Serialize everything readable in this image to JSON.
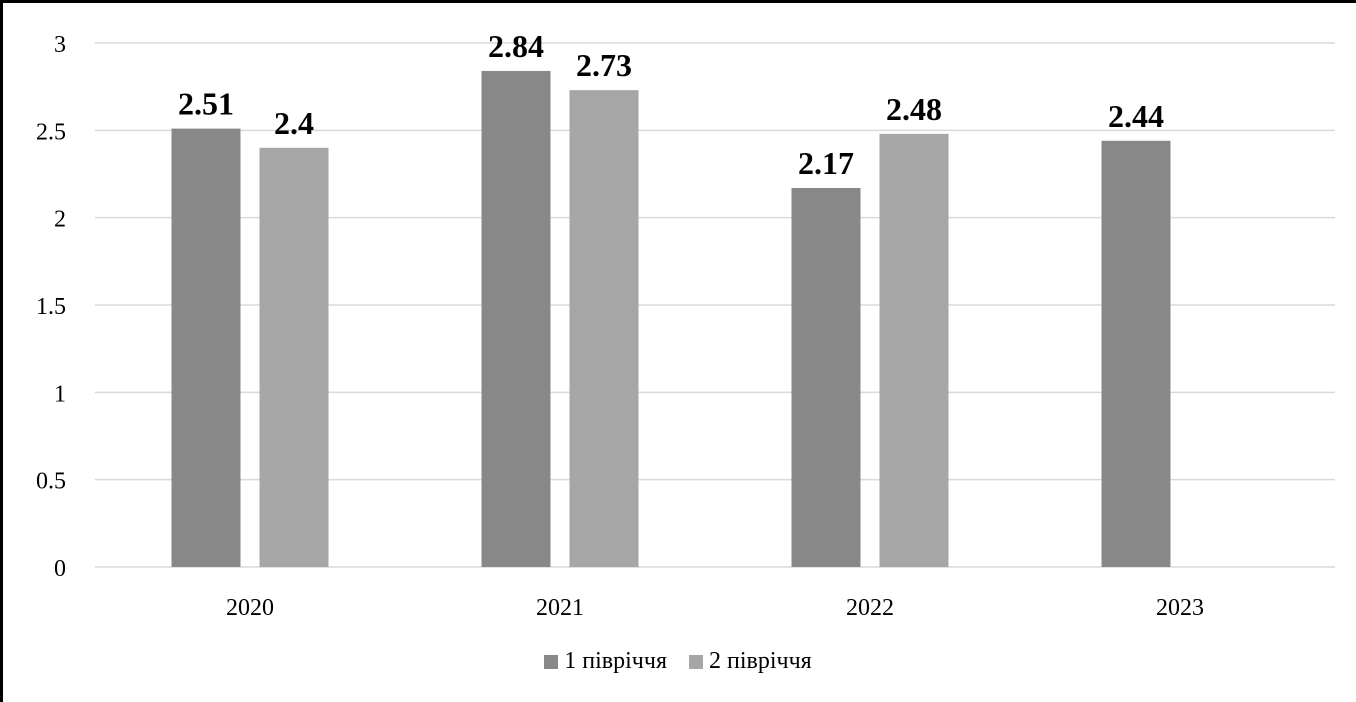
{
  "chart_data": {
    "type": "bar",
    "categories": [
      "2020",
      "2021",
      "2022",
      "2023"
    ],
    "series": [
      {
        "name": "1 півріччя",
        "values": [
          2.51,
          2.84,
          2.17,
          2.44
        ],
        "color": "#888888"
      },
      {
        "name": "2 півріччя",
        "values": [
          2.4,
          2.73,
          2.48,
          null
        ],
        "color": "#a6a6a6"
      }
    ],
    "yticks": [
      "0",
      "0.5",
      "1",
      "1.5",
      "2",
      "2.5",
      "3"
    ],
    "ylim": [
      0,
      3
    ],
    "grid": true,
    "legend_position": "bottom"
  },
  "legend": {
    "items": [
      {
        "label": "1 півріччя",
        "color": "#888888"
      },
      {
        "label": "2 півріччя",
        "color": "#a6a6a6"
      }
    ]
  }
}
